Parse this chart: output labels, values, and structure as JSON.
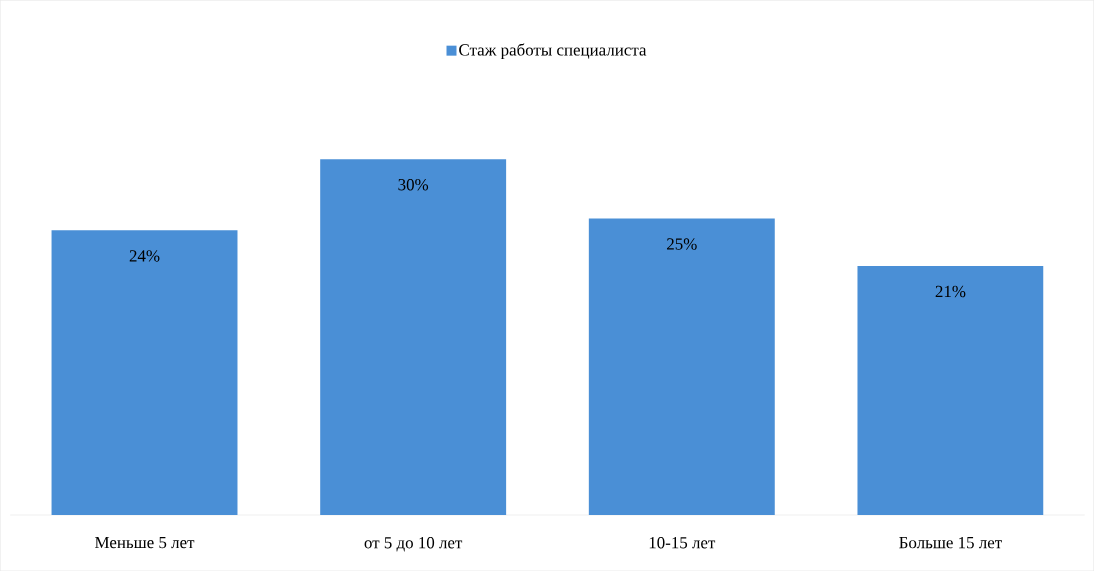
{
  "chart_data": {
    "type": "bar",
    "categories": [
      "Меньше 5 лет",
      "от 5 до 10 лет",
      "10-15 лет",
      "Больше 15 лет"
    ],
    "series": [
      {
        "name": "Стаж работы специалиста",
        "color": "#4a8fd6",
        "values": [
          24,
          30,
          25,
          21
        ],
        "value_labels": [
          "24%",
          "30%",
          "25%",
          "21%"
        ]
      }
    ],
    "legend": "top",
    "grid": false
  }
}
